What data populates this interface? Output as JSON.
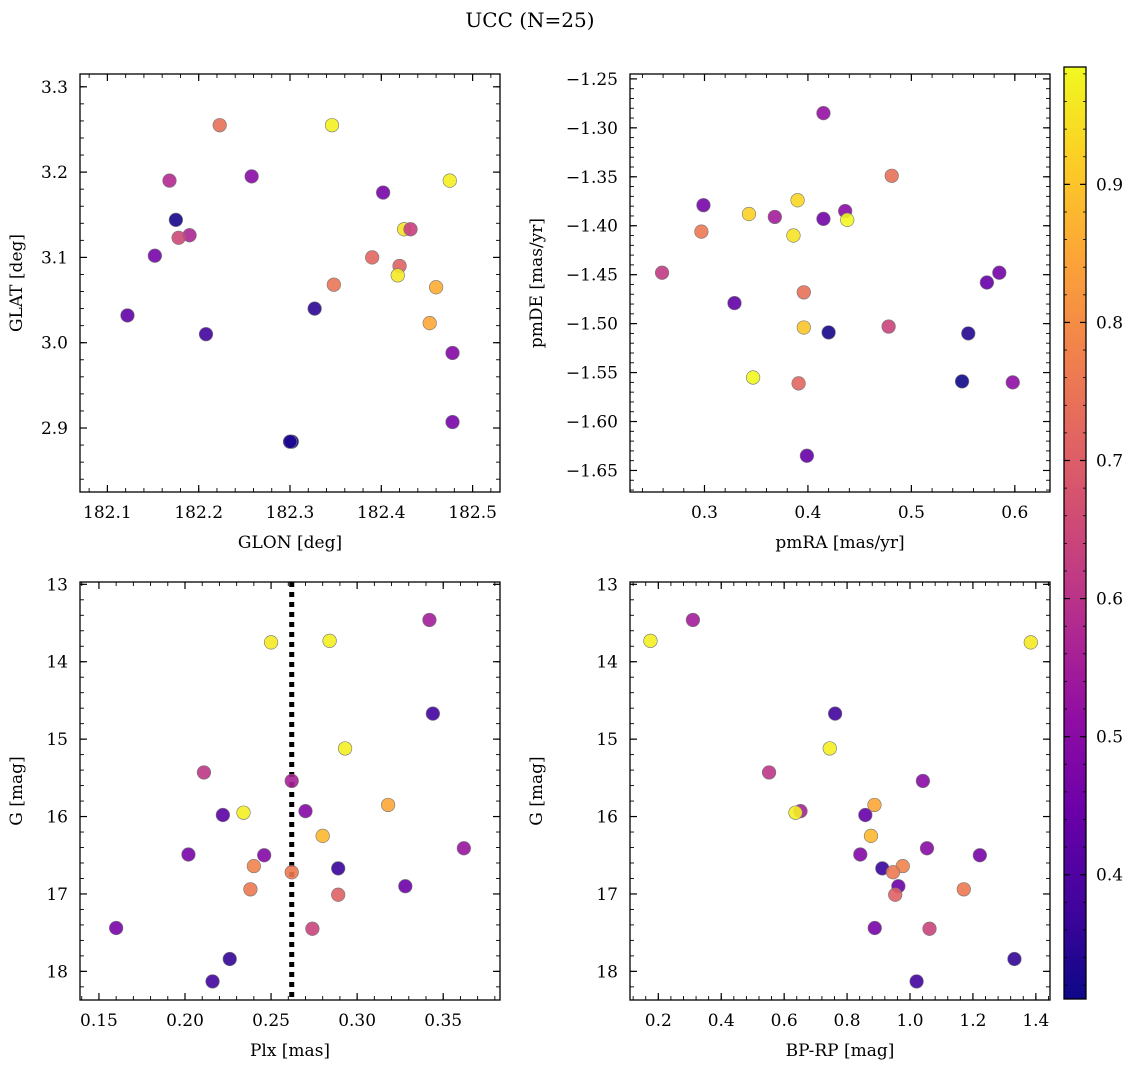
{
  "figure": {
    "title": "UCC (N=25)"
  },
  "colorbar": {
    "cmap": "plasma",
    "range": [
      0.31,
      0.985
    ],
    "ticks": [
      0.4,
      0.5,
      0.6,
      0.7,
      0.8,
      0.9
    ]
  },
  "chart_data": [
    {
      "type": "scatter",
      "xlabel": "GLON [deg]",
      "ylabel": "GLAT [deg]",
      "xlim": [
        182.07,
        182.53
      ],
      "ylim": [
        2.825,
        3.315
      ],
      "xticks": [
        182.1,
        182.2,
        182.3,
        182.4,
        182.5
      ],
      "yticks": [
        2.9,
        3.0,
        3.1,
        3.2,
        3.3
      ],
      "xfmt": 1,
      "yfmt": 1,
      "grid": false,
      "points": [
        {
          "x": 182.223,
          "y": 3.255,
          "c": 0.74
        },
        {
          "x": 182.346,
          "y": 3.255,
          "c": 0.97
        },
        {
          "x": 182.258,
          "y": 3.195,
          "c": 0.5
        },
        {
          "x": 182.168,
          "y": 3.19,
          "c": 0.58
        },
        {
          "x": 182.475,
          "y": 3.19,
          "c": 0.97
        },
        {
          "x": 182.402,
          "y": 3.176,
          "c": 0.47
        },
        {
          "x": 182.175,
          "y": 3.144,
          "c": 0.32
        },
        {
          "x": 182.425,
          "y": 3.133,
          "c": 0.95
        },
        {
          "x": 182.432,
          "y": 3.133,
          "c": 0.63
        },
        {
          "x": 182.19,
          "y": 3.126,
          "c": 0.57
        },
        {
          "x": 182.178,
          "y": 3.123,
          "c": 0.65
        },
        {
          "x": 182.152,
          "y": 3.102,
          "c": 0.47
        },
        {
          "x": 182.39,
          "y": 3.1,
          "c": 0.72
        },
        {
          "x": 182.42,
          "y": 3.09,
          "c": 0.71
        },
        {
          "x": 182.418,
          "y": 3.079,
          "c": 0.96
        },
        {
          "x": 182.348,
          "y": 3.068,
          "c": 0.75
        },
        {
          "x": 182.46,
          "y": 3.065,
          "c": 0.86
        },
        {
          "x": 182.327,
          "y": 3.04,
          "c": 0.35
        },
        {
          "x": 182.122,
          "y": 3.032,
          "c": 0.43
        },
        {
          "x": 182.453,
          "y": 3.023,
          "c": 0.85
        },
        {
          "x": 182.208,
          "y": 3.01,
          "c": 0.38
        },
        {
          "x": 182.478,
          "y": 2.988,
          "c": 0.49
        },
        {
          "x": 182.478,
          "y": 2.907,
          "c": 0.47
        },
        {
          "x": 182.302,
          "y": 2.884,
          "c": 0.32
        },
        {
          "x": 182.3,
          "y": 2.884,
          "c": 0.33
        }
      ]
    },
    {
      "type": "scatter",
      "xlabel": "pmRA [mas/yr]",
      "ylabel": "pmDE [mas/yr]",
      "xlim": [
        0.228,
        0.634
      ],
      "ylim": [
        -1.672,
        -1.245
      ],
      "xticks": [
        0.3,
        0.4,
        0.5,
        0.6
      ],
      "yticks": [
        -1.65,
        -1.6,
        -1.55,
        -1.5,
        -1.45,
        -1.4,
        -1.35,
        -1.3,
        -1.25
      ],
      "xfmt": 1,
      "yfmt": 2,
      "grid": false,
      "points": [
        {
          "x": 0.415,
          "y": -1.285,
          "c": 0.52
        },
        {
          "x": 0.481,
          "y": -1.349,
          "c": 0.74
        },
        {
          "x": 0.39,
          "y": -1.374,
          "c": 0.93
        },
        {
          "x": 0.299,
          "y": -1.379,
          "c": 0.47
        },
        {
          "x": 0.436,
          "y": -1.385,
          "c": 0.5
        },
        {
          "x": 0.343,
          "y": -1.388,
          "c": 0.92
        },
        {
          "x": 0.368,
          "y": -1.391,
          "c": 0.55
        },
        {
          "x": 0.415,
          "y": -1.393,
          "c": 0.46
        },
        {
          "x": 0.438,
          "y": -1.394,
          "c": 0.98
        },
        {
          "x": 0.297,
          "y": -1.406,
          "c": 0.76
        },
        {
          "x": 0.386,
          "y": -1.41,
          "c": 0.95
        },
        {
          "x": 0.259,
          "y": -1.448,
          "c": 0.62
        },
        {
          "x": 0.585,
          "y": -1.448,
          "c": 0.46
        },
        {
          "x": 0.573,
          "y": -1.458,
          "c": 0.44
        },
        {
          "x": 0.396,
          "y": -1.468,
          "c": 0.74
        },
        {
          "x": 0.329,
          "y": -1.479,
          "c": 0.43
        },
        {
          "x": 0.478,
          "y": -1.503,
          "c": 0.64
        },
        {
          "x": 0.396,
          "y": -1.504,
          "c": 0.9
        },
        {
          "x": 0.42,
          "y": -1.509,
          "c": 0.32
        },
        {
          "x": 0.555,
          "y": -1.51,
          "c": 0.34
        },
        {
          "x": 0.347,
          "y": -1.555,
          "c": 0.98
        },
        {
          "x": 0.549,
          "y": -1.559,
          "c": 0.31
        },
        {
          "x": 0.391,
          "y": -1.561,
          "c": 0.72
        },
        {
          "x": 0.598,
          "y": -1.56,
          "c": 0.51
        },
        {
          "x": 0.399,
          "y": -1.635,
          "c": 0.44
        }
      ]
    },
    {
      "type": "scatter",
      "xlabel": "Plx [mas]",
      "ylabel": "G [mag]",
      "xlim": [
        0.139,
        0.383
      ],
      "ylim": [
        18.37,
        12.97
      ],
      "invert_y": true,
      "xticks": [
        0.15,
        0.2,
        0.25,
        0.3,
        0.35
      ],
      "yticks": [
        13,
        14,
        15,
        16,
        17,
        18
      ],
      "xfmt": 2,
      "yfmt": 0,
      "grid": false,
      "vline": 0.262,
      "points": [
        {
          "x": 0.342,
          "y": 13.46,
          "c": 0.55
        },
        {
          "x": 0.284,
          "y": 13.73,
          "c": 0.97
        },
        {
          "x": 0.25,
          "y": 13.75,
          "c": 0.96
        },
        {
          "x": 0.344,
          "y": 14.67,
          "c": 0.38
        },
        {
          "x": 0.293,
          "y": 15.12,
          "c": 0.97
        },
        {
          "x": 0.211,
          "y": 15.43,
          "c": 0.61
        },
        {
          "x": 0.262,
          "y": 15.54,
          "c": 0.56
        },
        {
          "x": 0.318,
          "y": 15.85,
          "c": 0.85
        },
        {
          "x": 0.27,
          "y": 15.93,
          "c": 0.49
        },
        {
          "x": 0.234,
          "y": 15.95,
          "c": 0.97
        },
        {
          "x": 0.222,
          "y": 15.98,
          "c": 0.42
        },
        {
          "x": 0.28,
          "y": 16.25,
          "c": 0.88
        },
        {
          "x": 0.362,
          "y": 16.41,
          "c": 0.53
        },
        {
          "x": 0.202,
          "y": 16.49,
          "c": 0.47
        },
        {
          "x": 0.246,
          "y": 16.5,
          "c": 0.49
        },
        {
          "x": 0.24,
          "y": 16.64,
          "c": 0.78
        },
        {
          "x": 0.289,
          "y": 16.67,
          "c": 0.37
        },
        {
          "x": 0.262,
          "y": 16.72,
          "c": 0.76
        },
        {
          "x": 0.328,
          "y": 16.9,
          "c": 0.45
        },
        {
          "x": 0.238,
          "y": 16.94,
          "c": 0.76
        },
        {
          "x": 0.289,
          "y": 17.01,
          "c": 0.71
        },
        {
          "x": 0.16,
          "y": 17.44,
          "c": 0.47
        },
        {
          "x": 0.274,
          "y": 17.45,
          "c": 0.64
        },
        {
          "x": 0.226,
          "y": 17.84,
          "c": 0.36
        },
        {
          "x": 0.216,
          "y": 18.13,
          "c": 0.38
        }
      ]
    },
    {
      "type": "scatter",
      "xlabel": "BP-RP [mag]",
      "ylabel": "G [mag]",
      "xlim": [
        0.11,
        1.445
      ],
      "ylim": [
        18.37,
        12.97
      ],
      "invert_y": true,
      "xticks": [
        0.2,
        0.4,
        0.6,
        0.8,
        1.0,
        1.2,
        1.4
      ],
      "yticks": [
        13,
        14,
        15,
        16,
        17,
        18
      ],
      "xfmt": 1,
      "yfmt": 0,
      "grid": false,
      "points": [
        {
          "x": 0.31,
          "y": 13.46,
          "c": 0.55
        },
        {
          "x": 0.175,
          "y": 13.73,
          "c": 0.97
        },
        {
          "x": 1.384,
          "y": 13.75,
          "c": 0.96
        },
        {
          "x": 0.762,
          "y": 14.67,
          "c": 0.38
        },
        {
          "x": 0.745,
          "y": 15.12,
          "c": 0.97
        },
        {
          "x": 0.552,
          "y": 15.43,
          "c": 0.61
        },
        {
          "x": 1.041,
          "y": 15.54,
          "c": 0.5
        },
        {
          "x": 0.887,
          "y": 15.85,
          "c": 0.85
        },
        {
          "x": 0.652,
          "y": 15.93,
          "c": 0.56
        },
        {
          "x": 0.636,
          "y": 15.95,
          "c": 0.97
        },
        {
          "x": 0.858,
          "y": 15.98,
          "c": 0.44
        },
        {
          "x": 0.876,
          "y": 16.25,
          "c": 0.88
        },
        {
          "x": 1.054,
          "y": 16.41,
          "c": 0.5
        },
        {
          "x": 0.842,
          "y": 16.49,
          "c": 0.49
        },
        {
          "x": 1.222,
          "y": 16.5,
          "c": 0.47
        },
        {
          "x": 0.977,
          "y": 16.64,
          "c": 0.78
        },
        {
          "x": 0.912,
          "y": 16.67,
          "c": 0.37
        },
        {
          "x": 0.946,
          "y": 16.72,
          "c": 0.76
        },
        {
          "x": 0.963,
          "y": 16.9,
          "c": 0.45
        },
        {
          "x": 1.171,
          "y": 16.94,
          "c": 0.76
        },
        {
          "x": 0.953,
          "y": 17.01,
          "c": 0.71
        },
        {
          "x": 0.888,
          "y": 17.44,
          "c": 0.47
        },
        {
          "x": 1.062,
          "y": 17.45,
          "c": 0.64
        },
        {
          "x": 1.332,
          "y": 17.84,
          "c": 0.36
        },
        {
          "x": 1.021,
          "y": 18.13,
          "c": 0.38
        }
      ]
    }
  ]
}
